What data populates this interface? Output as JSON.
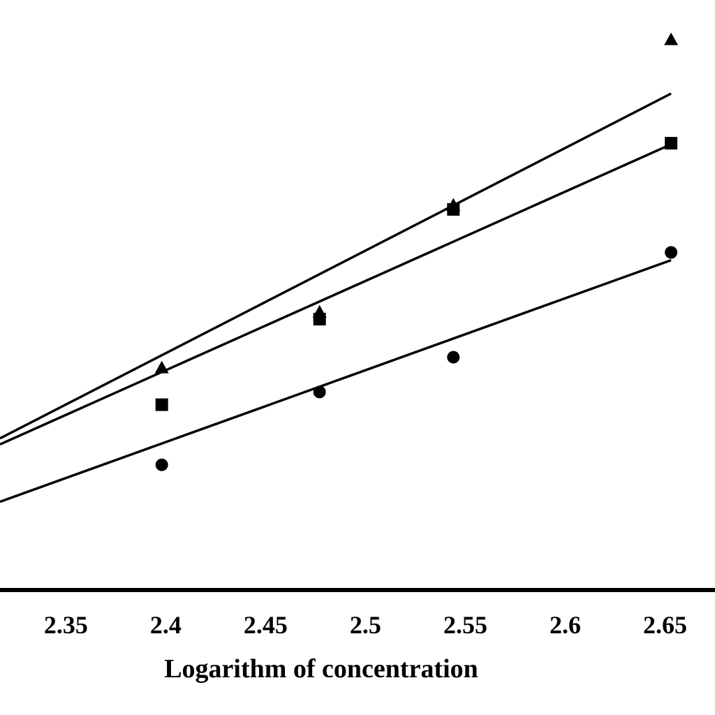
{
  "chart_data": {
    "type": "scatter",
    "title": "",
    "xlabel": "Logarithm of concentration",
    "ylabel": "",
    "xlim": [
      2.317,
      2.675
    ],
    "ylim": [
      0,
      1
    ],
    "x_ticks": [
      "2.35",
      "2.4",
      "2.45",
      "2.5",
      "2.55",
      "2.6",
      "2.65"
    ],
    "grid": false,
    "legend": "none",
    "x": [
      2.398,
      2.477,
      2.544,
      2.653
    ],
    "series": [
      {
        "marker": "triangle",
        "color": "#000000",
        "values": [
          0.403,
          0.504,
          0.698,
          0.998
        ],
        "fit": {
          "x": [
            2.317,
            2.653
          ],
          "y": [
            0.275,
            0.9
          ]
        }
      },
      {
        "marker": "square",
        "color": "#000000",
        "values": [
          0.336,
          0.491,
          0.69,
          0.81
        ],
        "fit": {
          "x": [
            2.317,
            2.653
          ],
          "y": [
            0.264,
            0.808
          ]
        }
      },
      {
        "marker": "circle",
        "color": "#000000",
        "values": [
          0.227,
          0.359,
          0.422,
          0.612
        ],
        "fit": {
          "x": [
            2.317,
            2.653
          ],
          "y": [
            0.16,
            0.598
          ]
        }
      }
    ]
  }
}
